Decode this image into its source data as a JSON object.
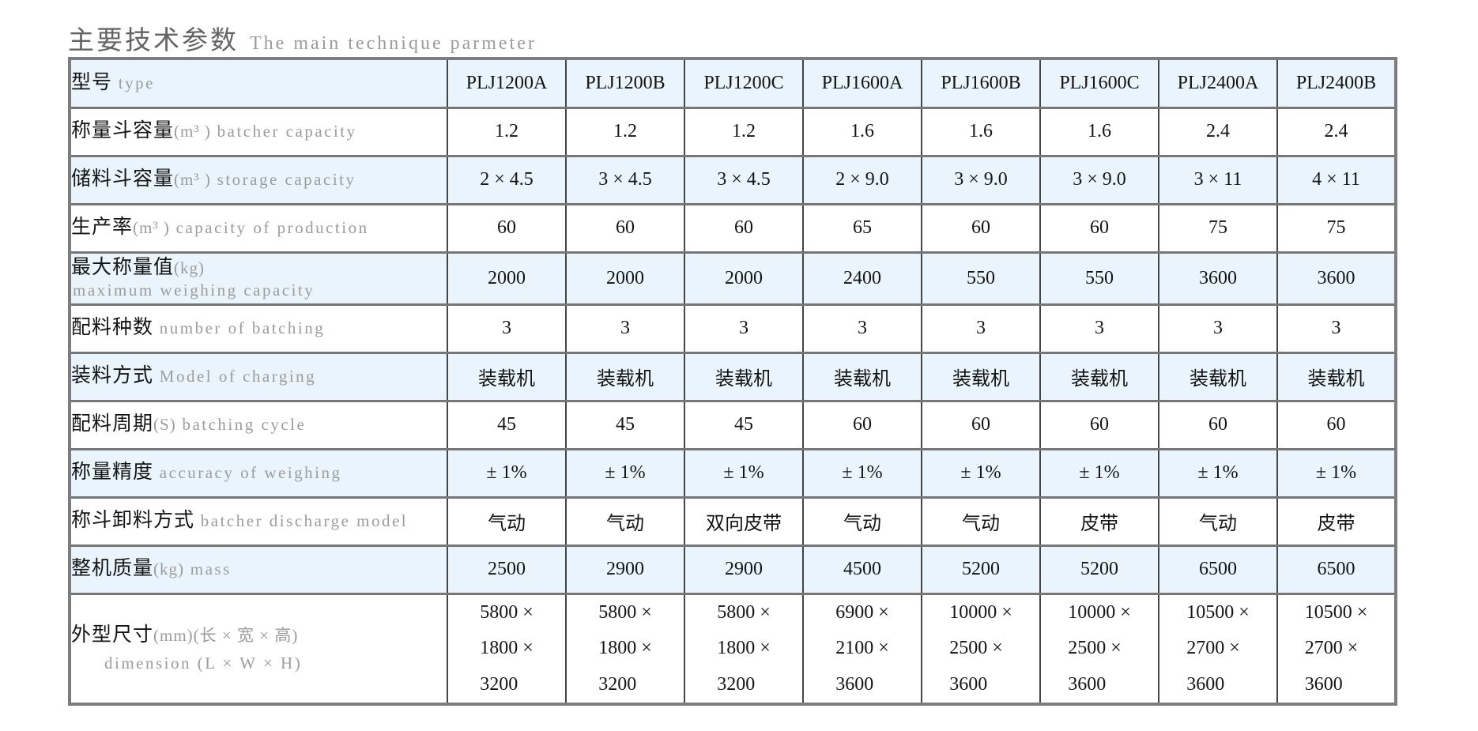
{
  "title": {
    "zh": "主要技术参数",
    "en": "The main technique parmeter"
  },
  "colors": {
    "shaded_row": "#e9f4fc",
    "frame_border": "#7d7d7d",
    "grid_line": "#454545",
    "text_primary": "#141414",
    "text_secondary": "#9c9c9c"
  },
  "table": {
    "header": {
      "label_zh": "型号",
      "label_en": "type",
      "models": [
        "PLJ1200A",
        "PLJ1200B",
        "PLJ1200C",
        "PLJ1600A",
        "PLJ1600B",
        "PLJ1600C",
        "PLJ2400A",
        "PLJ2400B"
      ]
    },
    "rows": [
      {
        "zh": "称量斗容量",
        "unit": "(m³ )",
        "en": "batcher capacity",
        "shaded": false,
        "two_line": false,
        "values": [
          "1.2",
          "1.2",
          "1.2",
          "1.6",
          "1.6",
          "1.6",
          "2.4",
          "2.4"
        ]
      },
      {
        "zh": "储料斗容量",
        "unit": "(m³ )",
        "en": "storage capacity",
        "shaded": true,
        "two_line": false,
        "values": [
          "2 × 4.5",
          "3 × 4.5",
          "3 × 4.5",
          "2 × 9.0",
          "3 × 9.0",
          "3 × 9.0",
          "3 × 11",
          "4 × 11"
        ]
      },
      {
        "zh": "生产率",
        "unit": "(m³ )",
        "en": "capacity of production",
        "shaded": false,
        "two_line": false,
        "values": [
          "60",
          "60",
          "60",
          "65",
          "60",
          "60",
          "75",
          "75"
        ]
      },
      {
        "zh": "最大称量值",
        "unit": "(kg)",
        "en": "maximum weighing capacity",
        "shaded": true,
        "two_line": true,
        "values": [
          "2000",
          "2000",
          "2000",
          "2400",
          "550",
          "550",
          "3600",
          "3600"
        ]
      },
      {
        "zh": "配料种数",
        "unit": "",
        "en": "number of batching",
        "shaded": false,
        "two_line": false,
        "values": [
          "3",
          "3",
          "3",
          "3",
          "3",
          "3",
          "3",
          "3"
        ]
      },
      {
        "zh": "装料方式",
        "unit": "",
        "en": "Model of charging",
        "shaded": true,
        "two_line": false,
        "values": [
          "装载机",
          "装载机",
          "装载机",
          "装载机",
          "装载机",
          "装载机",
          "装载机",
          "装载机"
        ]
      },
      {
        "zh": "配料周期",
        "unit": "(S)",
        "en": "batching cycle",
        "shaded": false,
        "two_line": false,
        "values": [
          "45",
          "45",
          "45",
          "60",
          "60",
          "60",
          "60",
          "60"
        ]
      },
      {
        "zh": "称量精度",
        "unit": "",
        "en": "accuracy of weighing",
        "shaded": true,
        "two_line": false,
        "values": [
          "± 1%",
          "± 1%",
          "± 1%",
          "± 1%",
          "± 1%",
          "± 1%",
          "± 1%",
          "± 1%"
        ]
      },
      {
        "zh": "称斗卸料方式",
        "unit": "",
        "en": "batcher discharge model",
        "shaded": false,
        "two_line": false,
        "values": [
          "气动",
          "气动",
          "双向皮带",
          "气动",
          "气动",
          "皮带",
          "气动",
          "皮带"
        ]
      },
      {
        "zh": "整机质量",
        "unit": "(kg)",
        "en": "mass",
        "shaded": true,
        "two_line": false,
        "values": [
          "2500",
          "2900",
          "2900",
          "4500",
          "5200",
          "5200",
          "6500",
          "6500"
        ]
      },
      {
        "zh": "外型尺寸",
        "unit": "(mm)(长 × 宽 × 高)",
        "en": "dimension (L × W × H)",
        "shaded": false,
        "two_line": true,
        "dimension_row": true,
        "values": [
          [
            "5800 ×",
            "1800 ×",
            "3200"
          ],
          [
            "5800 ×",
            "1800 ×",
            "3200"
          ],
          [
            "5800 ×",
            "1800 ×",
            "3200"
          ],
          [
            "6900 ×",
            "2100 ×",
            "3600"
          ],
          [
            "10000 ×",
            "2500 ×",
            "3600"
          ],
          [
            "10000 ×",
            "2500 ×",
            "3600"
          ],
          [
            "10500 ×",
            "2700 ×",
            "3600"
          ],
          [
            "10500 ×",
            "2700 ×",
            "3600"
          ]
        ]
      }
    ]
  }
}
